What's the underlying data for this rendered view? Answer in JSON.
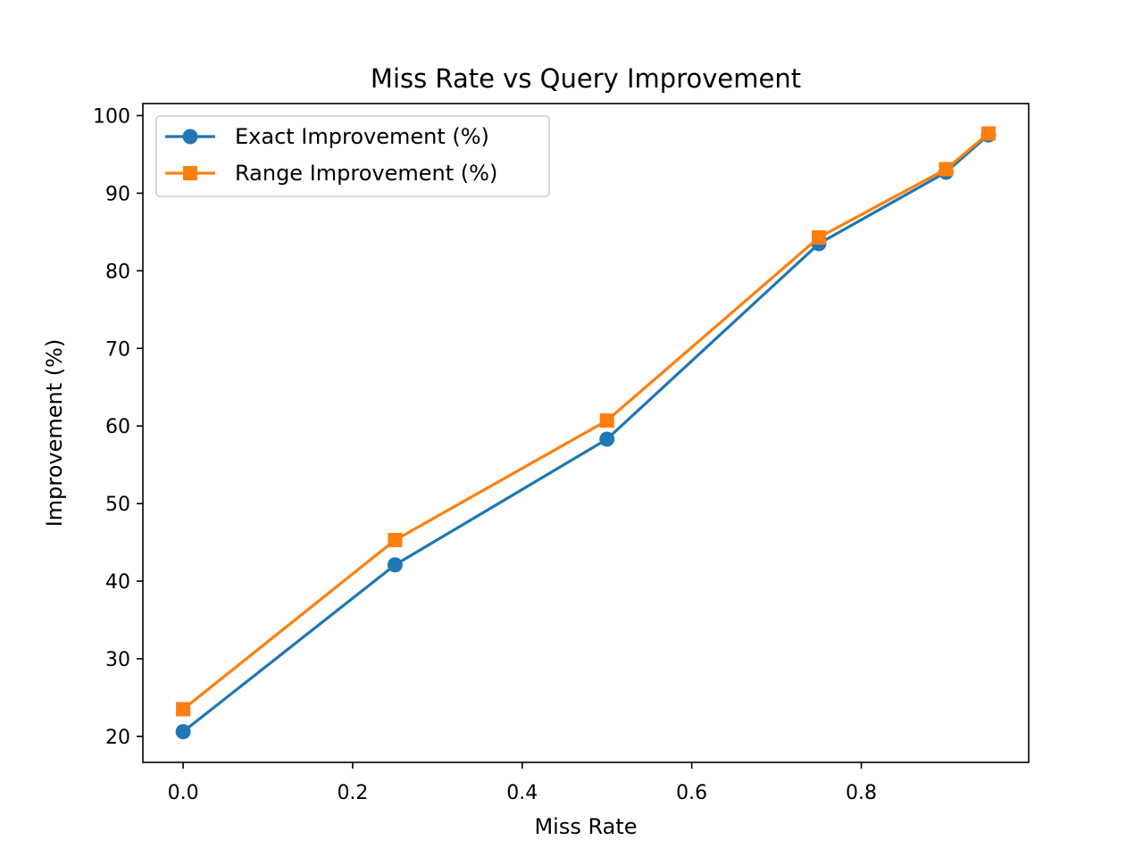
{
  "chart_data": {
    "type": "line",
    "title": "Miss Rate vs Query Improvement",
    "xlabel": "Miss Rate",
    "ylabel": "Improvement (%)",
    "xlim": [
      -0.0475,
      0.9975
    ],
    "ylim": [
      16.65,
      101.55
    ],
    "xticks": [
      0.0,
      0.2,
      0.4,
      0.6,
      0.8
    ],
    "xtick_labels": [
      "0.0",
      "0.2",
      "0.4",
      "0.6",
      "0.8"
    ],
    "yticks": [
      20,
      30,
      40,
      50,
      60,
      70,
      80,
      90,
      100
    ],
    "ytick_labels": [
      "20",
      "30",
      "40",
      "50",
      "60",
      "70",
      "80",
      "90",
      "100"
    ],
    "grid": false,
    "legend_position": "upper-left",
    "x": [
      0.0,
      0.25,
      0.5,
      0.75,
      0.9,
      0.95
    ],
    "series": [
      {
        "name": "Exact Improvement (%)",
        "values": [
          20.6,
          42.1,
          58.3,
          83.5,
          92.7,
          97.5
        ],
        "color": "#1f77b4",
        "marker": "circle"
      },
      {
        "name": "Range Improvement (%)",
        "values": [
          23.5,
          45.3,
          60.7,
          84.3,
          93.1,
          97.7
        ],
        "color": "#ff7f0e",
        "marker": "square"
      }
    ]
  }
}
